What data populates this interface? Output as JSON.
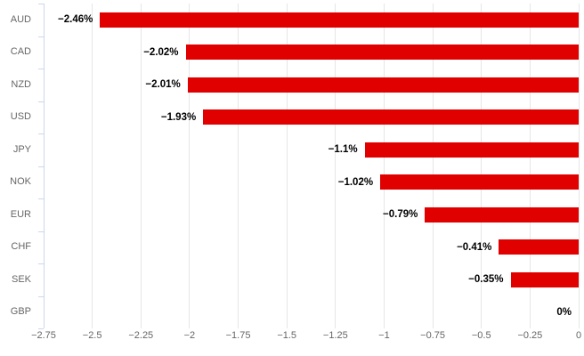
{
  "chart_data": {
    "type": "bar",
    "orientation": "horizontal",
    "title": "",
    "xlabel": "",
    "ylabel": "",
    "categories": [
      "AUD",
      "CAD",
      "NZD",
      "USD",
      "JPY",
      "NOK",
      "EUR",
      "CHF",
      "SEK",
      "GBP"
    ],
    "values": [
      -2.46,
      -2.02,
      -2.01,
      -1.93,
      -1.1,
      -1.02,
      -0.79,
      -0.41,
      -0.35,
      0
    ],
    "data_labels": [
      "−2.46%",
      "−2.02%",
      "−2.01%",
      "−1.93%",
      "−1.1%",
      "−1.02%",
      "−0.79%",
      "−0.41%",
      "−0.35%",
      "0%"
    ],
    "xlim": [
      -2.75,
      0
    ],
    "x_ticks": [
      -2.75,
      -2.5,
      -2.25,
      -2,
      -1.75,
      -1.5,
      -1.25,
      -1,
      -0.75,
      -0.5,
      -0.25,
      0
    ],
    "x_tick_labels": [
      "−2.75",
      "−2.5",
      "−2.25",
      "−2",
      "−1.75",
      "−1.5",
      "−1.25",
      "−1",
      "−0.75",
      "−0.5",
      "−0.25",
      "0"
    ],
    "grid": true,
    "legend": false,
    "colors": {
      "bar": "#e00000",
      "gridline": "#e6e6e6",
      "axis_line": "#ccd6eb",
      "tick_label": "#666666",
      "category_label": "#666666",
      "data_label": "#000000",
      "background": "#ffffff"
    }
  }
}
